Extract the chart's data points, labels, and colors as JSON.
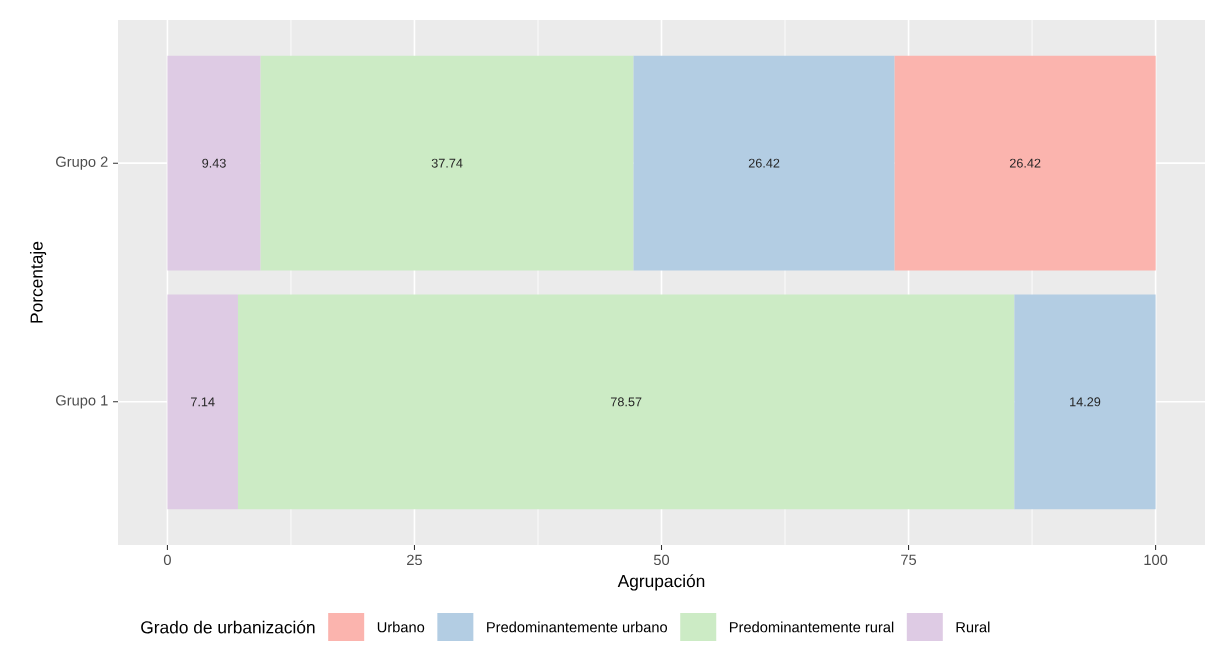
{
  "chart_data": {
    "type": "bar",
    "orientation": "horizontal",
    "stacked": true,
    "categories": [
      "Grupo 2",
      "Grupo 1"
    ],
    "series": [
      {
        "name": "Rural",
        "color": "#decbe4",
        "values": [
          9.43,
          7.14
        ]
      },
      {
        "name": "Predominantemente rural",
        "color": "#ccebc5",
        "values": [
          37.74,
          78.57
        ]
      },
      {
        "name": "Predominantemente urbano",
        "color": "#b3cde3",
        "values": [
          26.42,
          14.29
        ]
      },
      {
        "name": "Urbano",
        "color": "#fbb4ae",
        "values": [
          26.42,
          null
        ]
      }
    ],
    "xlabel": "Agrupación",
    "ylabel": "Porcentaje",
    "legend_title": "Grado de urbanización",
    "xlim": [
      -5,
      105
    ],
    "xticks": [
      0,
      25,
      50,
      75,
      100
    ],
    "grid": true,
    "legend": "bottom",
    "data_labels": true
  }
}
